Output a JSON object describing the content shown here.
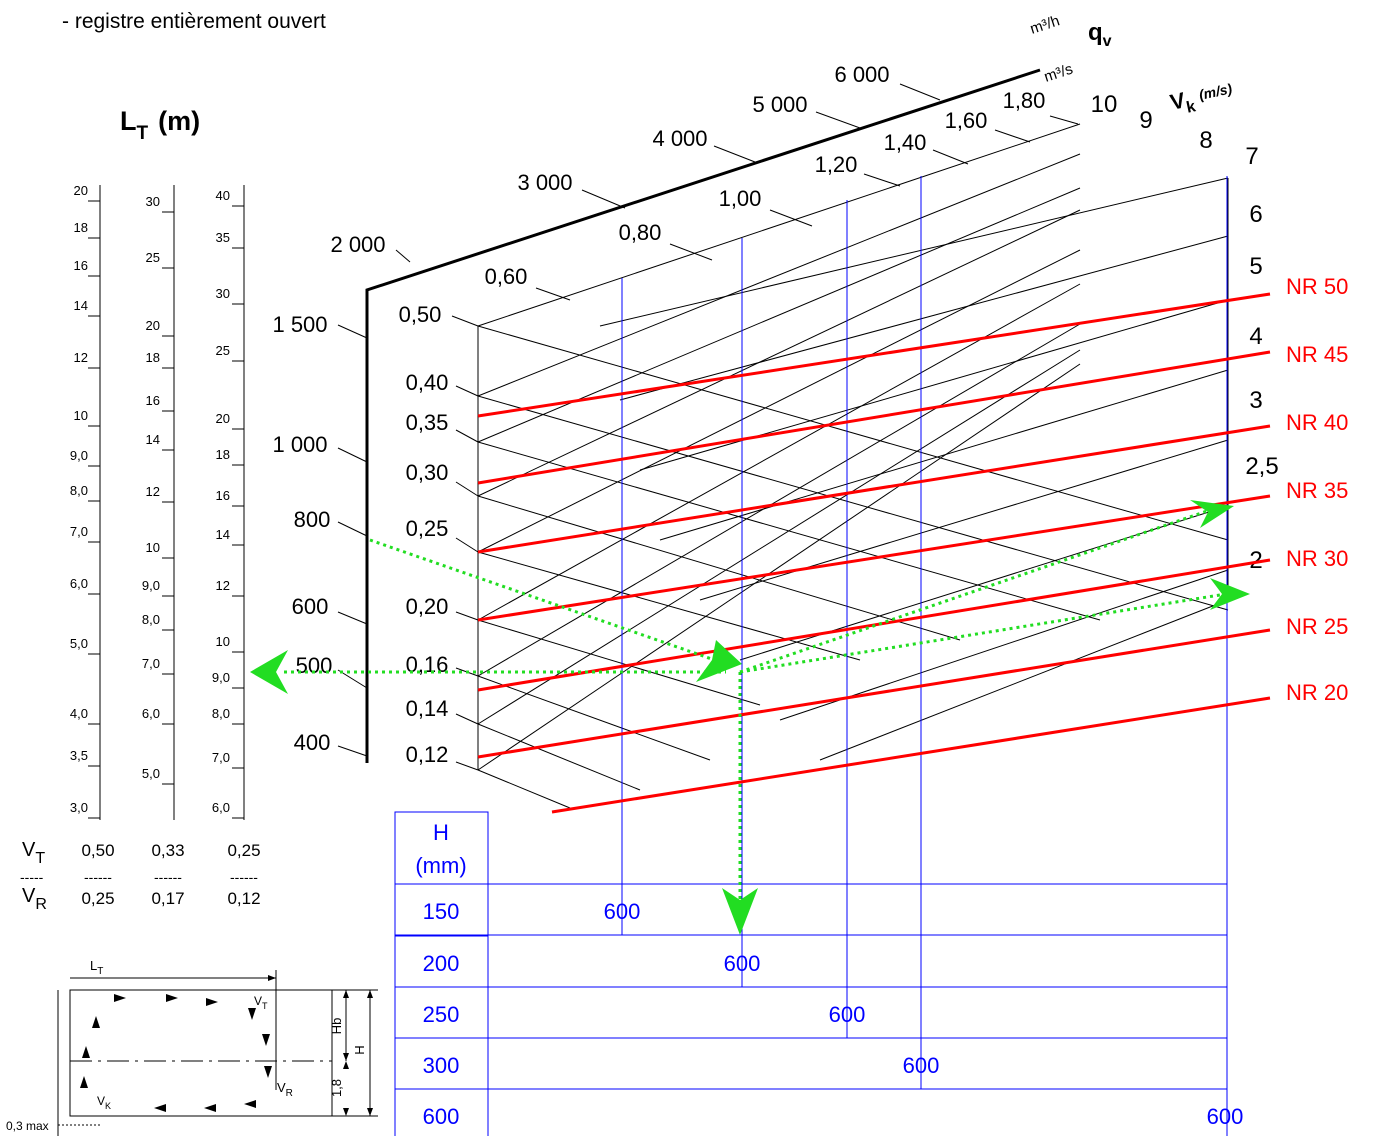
{
  "header": {
    "note": "- registre entièrement ouvert"
  },
  "lt_panel": {
    "title_main": "L",
    "title_sub": "T",
    "title_unit": "(m)",
    "scale1": [
      "20",
      "18",
      "16",
      "14",
      "12",
      "10",
      "9,0",
      "8,0",
      "7,0",
      "6,0",
      "5,0",
      "4,0",
      "3,5",
      "3,0"
    ],
    "scale2": [
      "30",
      "25",
      "20",
      "18",
      "16",
      "14",
      "12",
      "10",
      "9,0",
      "8,0",
      "7,0",
      "6,0",
      "5,0"
    ],
    "scale3": [
      "40",
      "35",
      "30",
      "25",
      "20",
      "18",
      "16",
      "14",
      "12",
      "10",
      "9,0",
      "8,0",
      "7,0",
      "6,0"
    ],
    "ratio_vt": "V",
    "ratio_vt_sub": "T",
    "ratio_vr": "V",
    "ratio_vr_sub": "R",
    "ratio_dash_short": "-----",
    "ratio_dash": "------",
    "ratios": [
      {
        "top": "0,50",
        "bottom": "0,25"
      },
      {
        "top": "0,33",
        "bottom": "0,17"
      },
      {
        "top": "0,25",
        "bottom": "0,12"
      }
    ]
  },
  "qv_axis": {
    "unit_h": "m³/h",
    "unit_s": "m³/s",
    "symbol": "q",
    "symbol_sub": "v",
    "m3h_ticks": [
      "6 000",
      "5 000",
      "4 000",
      "3 000",
      "2 000",
      "1 500",
      "1 000",
      "800",
      "600",
      "500",
      "400"
    ],
    "m3s_ticks": [
      "1,80",
      "1,60",
      "1,40",
      "1,20",
      "1,00",
      "0,80",
      "0,60",
      "0,50",
      "0,40",
      "0,35",
      "0,30",
      "0,25",
      "0,20",
      "0,16",
      "0,14",
      "0,12"
    ]
  },
  "vk_axis": {
    "symbol": "V",
    "symbol_sub": "k",
    "unit": "(m/s)",
    "ticks": [
      "10",
      "9",
      "8",
      "7",
      "6",
      "5",
      "4",
      "3",
      "2,5",
      "2"
    ]
  },
  "nr_curves": [
    "NR 50",
    "NR 45",
    "NR 40",
    "NR 35",
    "NR 30",
    "NR 25",
    "NR 20"
  ],
  "h_table": {
    "header_top": "H",
    "header_bottom": "(mm)",
    "rows": [
      {
        "h": "150",
        "value": "600"
      },
      {
        "h": "200",
        "value": "600"
      },
      {
        "h": "250",
        "value": "600"
      },
      {
        "h": "300",
        "value": "600"
      },
      {
        "h": "600",
        "value": "600"
      }
    ]
  },
  "room_sketch": {
    "lt": "L",
    "lt_sub": "T",
    "vt": "V",
    "vt_sub": "T",
    "vr": "V",
    "vr_sub": "R",
    "vk": "V",
    "vk_sub": "K",
    "hb": "Hb",
    "h": "H",
    "dim_18": "1,8",
    "dim_03": "0,3 max"
  },
  "colors": {
    "nr": "#ff0000",
    "blue": "#0000ff",
    "path": "#22dd22",
    "ink": "#000000"
  }
}
